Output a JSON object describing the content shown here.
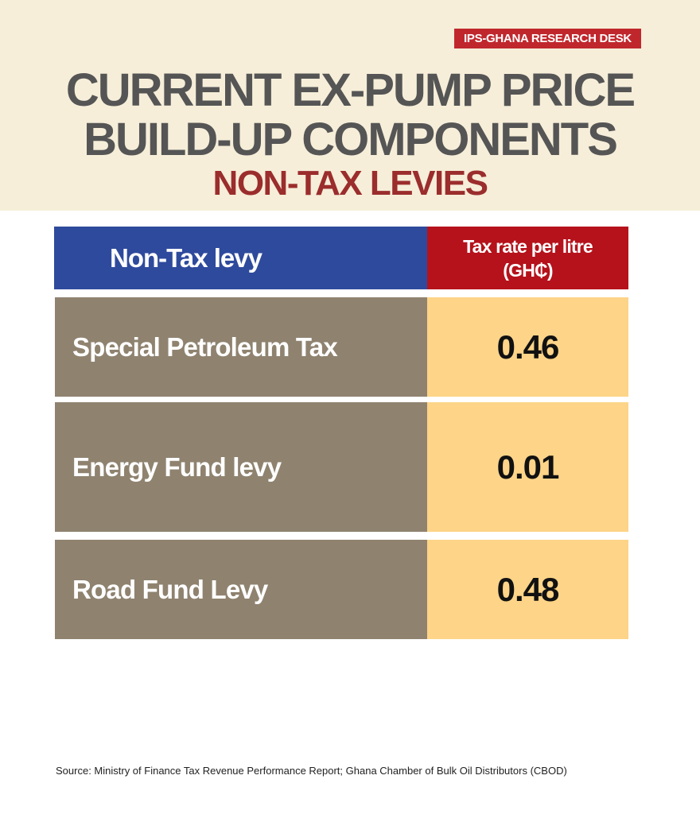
{
  "badge": "IPS-GHANA RESEARCH DESK",
  "title_line1": "CURRENT EX-PUMP PRICE",
  "title_line2": "BUILD-UP COMPONENTS",
  "subtitle": "NON-TAX LEVIES",
  "table": {
    "headers": [
      "Non-Tax levy",
      "Tax rate per litre",
      "(GH₵)"
    ],
    "rows": [
      {
        "levy": "Special Petroleum Tax",
        "rate": "0.46"
      },
      {
        "levy": "Energy Fund levy",
        "rate": "0.01"
      },
      {
        "levy": "Road Fund Levy",
        "rate": "0.48"
      }
    ]
  },
  "source": "Source: Ministry of Finance Tax Revenue Performance Report; Ghana Chamber of Bulk Oil Distributors (CBOD)",
  "colors": {
    "header_bg": "#f6eed9",
    "badge": "#c0272d",
    "blue": "#2e4a9c",
    "red": "#b5121b",
    "brown": "#8f8370",
    "yellow": "#fdd488"
  }
}
